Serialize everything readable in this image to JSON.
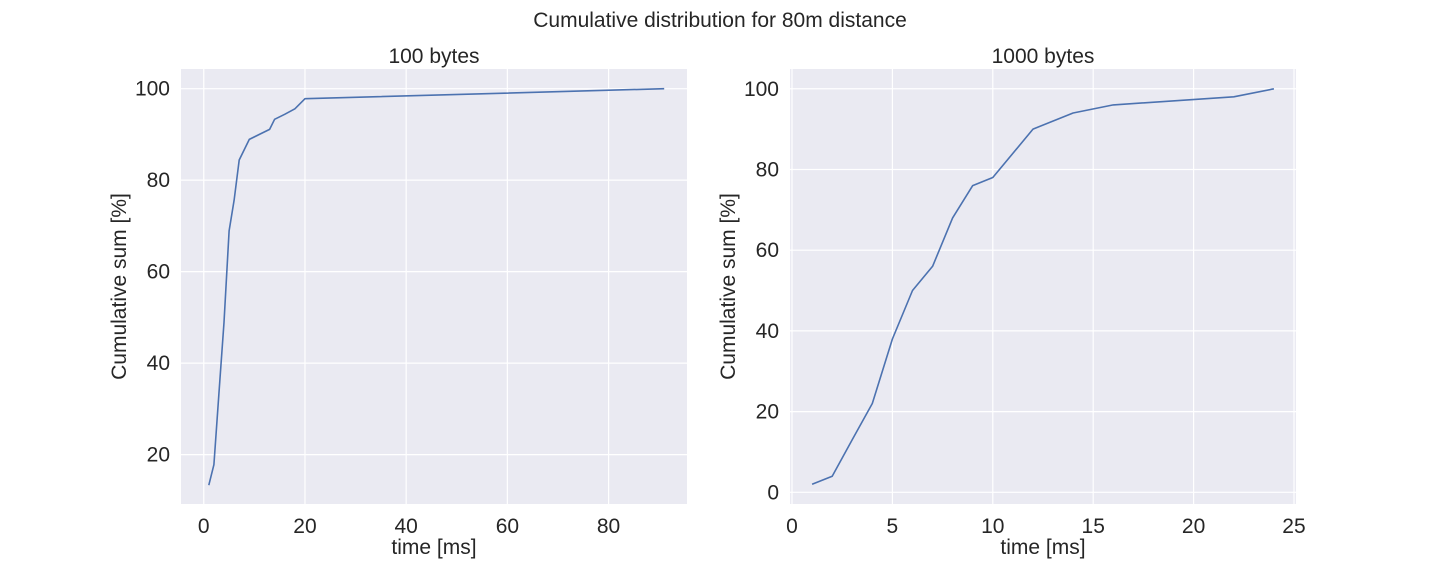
{
  "figure": {
    "title": "Cumulative distribution for 80m distance"
  },
  "chart_data": [
    {
      "type": "line",
      "title": "100 bytes",
      "xlabel": "time [ms]",
      "ylabel": "Cumulative sum [%]",
      "xlim": [
        -4.5,
        95.5
      ],
      "ylim": [
        9.2,
        104.3
      ],
      "xticks": [
        0,
        20,
        40,
        60,
        80
      ],
      "yticks": [
        20,
        40,
        60,
        80,
        100
      ],
      "grid": true,
      "series": [
        {
          "color": "#4c72b0",
          "x": [
            1,
            2,
            3,
            4,
            5,
            6,
            7,
            9,
            11,
            13,
            14,
            16,
            18,
            20,
            91
          ],
          "y": [
            13.3,
            17.8,
            33.3,
            48.9,
            68.9,
            75.6,
            84.4,
            88.9,
            90.0,
            91.1,
            93.3,
            94.4,
            95.6,
            97.8,
            100.0
          ]
        }
      ]
    },
    {
      "type": "line",
      "title": "1000 bytes",
      "xlabel": "time [ms]",
      "ylabel": "Cumulative sum [%]",
      "xlim": [
        -0.1,
        25.1
      ],
      "ylim": [
        -2.9,
        104.9
      ],
      "xticks": [
        0,
        5,
        10,
        15,
        20,
        25
      ],
      "yticks": [
        0,
        20,
        40,
        60,
        80,
        100
      ],
      "grid": true,
      "series": [
        {
          "color": "#4c72b0",
          "x": [
            1,
            2,
            3,
            4,
            5,
            6,
            7,
            8,
            9,
            10,
            12,
            14,
            16,
            22,
            24
          ],
          "y": [
            2,
            4,
            13,
            22,
            38,
            50,
            56,
            68,
            76,
            78,
            90,
            94,
            96,
            98,
            100
          ]
        }
      ]
    }
  ]
}
